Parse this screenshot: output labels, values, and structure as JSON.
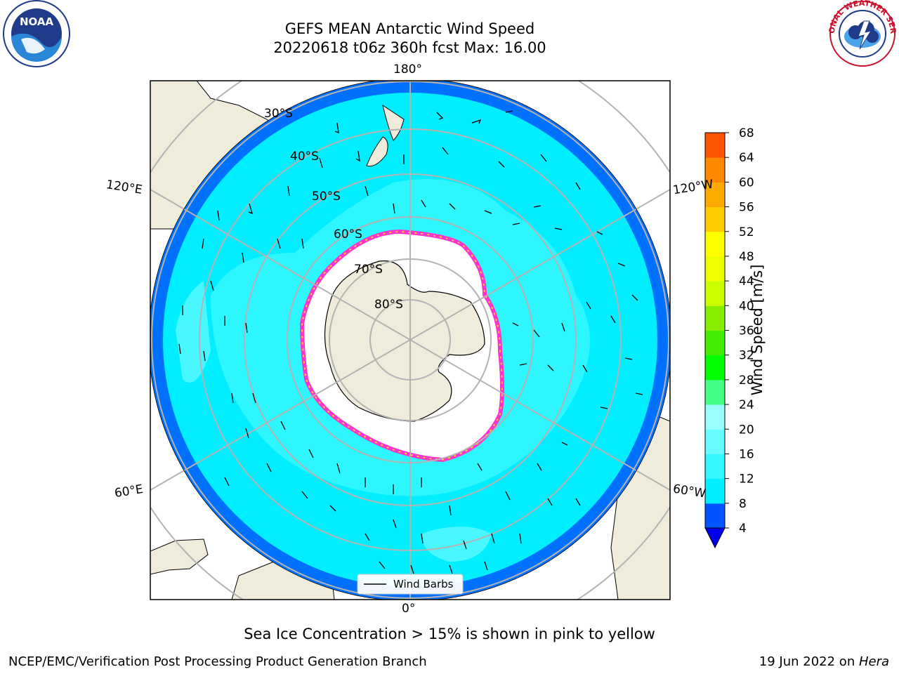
{
  "title": {
    "line1": "GEFS MEAN Antarctic Wind Speed",
    "line2": "20220618 t06z 360h fcst   Max: 16.00"
  },
  "map_labels": {
    "lon_top": "180°",
    "lon_bottom": "0°",
    "lon_left_upper": "120°E",
    "lon_left_lower": "60°E",
    "lon_right_upper": "120°W",
    "lon_right_lower": "60°W",
    "lat_30": "30°S",
    "lat_40": "40°S",
    "lat_50": "50°S",
    "lat_60": "60°S",
    "lat_70": "70°S",
    "lat_80": "80°S"
  },
  "legend": {
    "barbs_label": "Wind Barbs"
  },
  "colorbar": {
    "title": "Wind Speed [m/s]",
    "ticks": [
      "4",
      "8",
      "12",
      "16",
      "20",
      "24",
      "28",
      "32",
      "36",
      "40",
      "44",
      "48",
      "52",
      "56",
      "60",
      "64",
      "68"
    ],
    "colors": [
      "#0055ff",
      "#00eeff",
      "#33f6ff",
      "#66fbff",
      "#99ffff",
      "#44ff88",
      "#00ff00",
      "#44ee00",
      "#88ee00",
      "#ccff00",
      "#eeff00",
      "#ffff00",
      "#ffcc00",
      "#ffaa00",
      "#ff8800",
      "#ff5500",
      "#ff2200",
      "#ff0000"
    ],
    "under_color": "#0000ee"
  },
  "note": "Sea Ice Concentration > 15% is shown in pink to yellow",
  "footer": {
    "left": "NCEP/EMC/Verification Post Processing Product Generation Branch",
    "right_date": "19 Jun 2022 on ",
    "right_host": "Hera"
  },
  "logos": {
    "noaa_text": "NOAA",
    "nws_text": "NATIONAL WEATHER SERVICE"
  }
}
